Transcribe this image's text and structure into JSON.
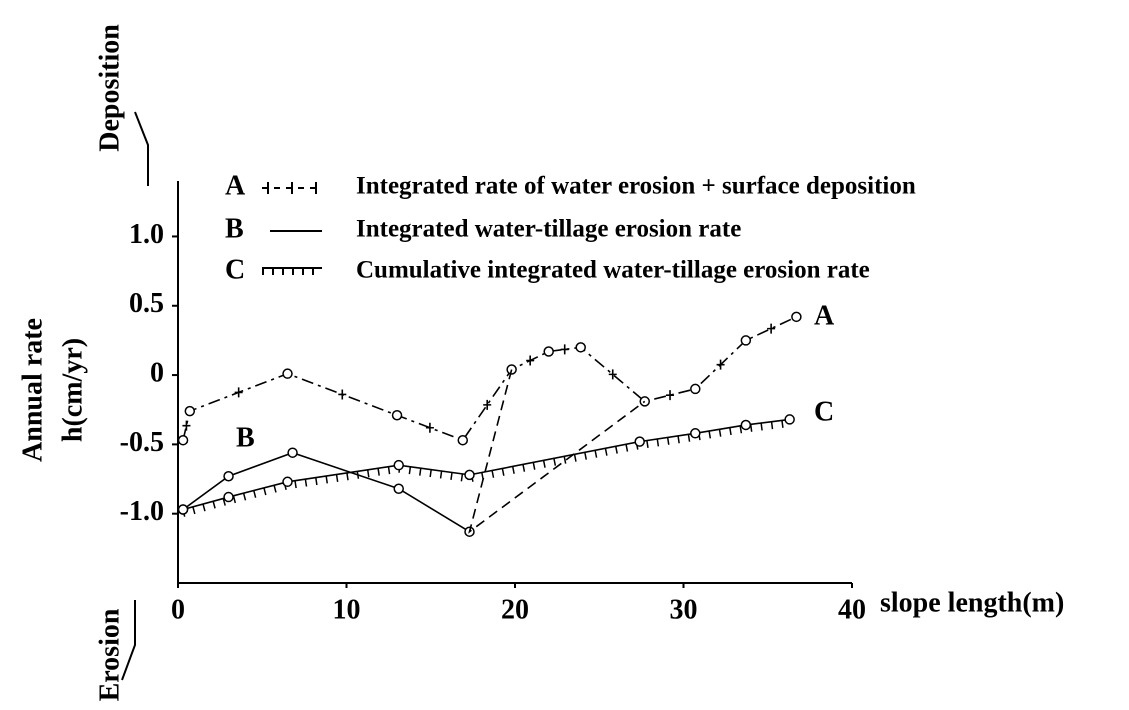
{
  "chart_data": {
    "type": "line",
    "ylabel": [
      "Annual rate",
      "h(cm/yr)"
    ],
    "xlabel": "slope length(m)",
    "annotations": {
      "top": "Deposition",
      "bottom": "Erosion"
    },
    "xlim": [
      0,
      40
    ],
    "xticks": [
      0,
      10,
      20,
      30,
      40
    ],
    "ylim": [
      -1.5,
      1.4
    ],
    "yticks": [
      {
        "value": 1,
        "label": "1.0"
      },
      0.5,
      0,
      -0.5,
      {
        "value": -1,
        "label": "-1.0"
      }
    ],
    "series": [
      {
        "label": "A",
        "name": "Integrated rate of water erosion + surface deposition",
        "color": "#000000",
        "style": "dashdot",
        "x": [
          0.3,
          0.7,
          6.5,
          13,
          16.9,
          19.8,
          22,
          23.9,
          27.7,
          30.7,
          33.7,
          36.7
        ],
        "values": [
          -0.47,
          -0.26,
          0.01,
          -0.29,
          -0.47,
          0.04,
          0.17,
          0.2,
          -0.19,
          -0.1,
          0.25,
          0.42
        ]
      },
      {
        "label": "B",
        "name": "Integrated water-tillage erosion rate",
        "color": "#000000",
        "style": "solid",
        "x": [
          0.3,
          3,
          6.8,
          13.1,
          17.3
        ],
        "values": [
          -0.97,
          -0.73,
          -0.56,
          -0.82,
          -1.13
        ]
      },
      {
        "label": "C",
        "name": "Cumulative integrated water-tillage erosion rate",
        "color": "#000000",
        "style": "hatched",
        "x": [
          0.3,
          3,
          6.5,
          13.1,
          17.3,
          27.4,
          30.7,
          33.7,
          36.3
        ],
        "values": [
          -0.97,
          -0.88,
          -0.77,
          -0.65,
          -0.72,
          -0.48,
          -0.42,
          -0.36,
          -0.32
        ]
      },
      {
        "color": "#000000",
        "style": "dashed",
        "x": [
          19.8,
          17.3,
          27.7
        ],
        "values": [
          0.04,
          -1.13,
          -0.19
        ]
      }
    ]
  }
}
